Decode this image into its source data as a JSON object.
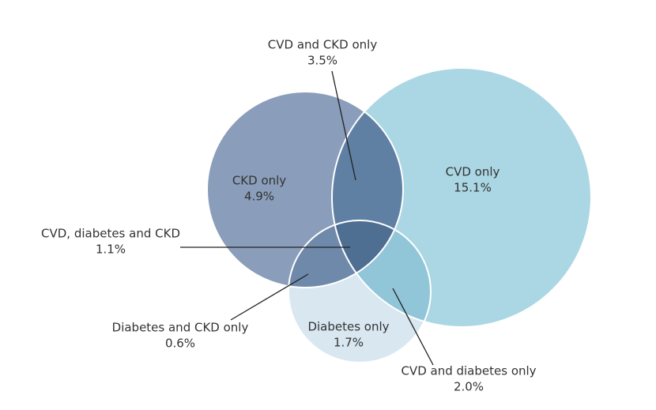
{
  "chart_data": {
    "type": "venn",
    "categories": [
      "CVD and CKD only",
      "CKD only",
      "CVD only",
      "CVD, diabetes and CKD",
      "Diabetes and CKD only",
      "Diabetes only",
      "CVD and diabetes only"
    ],
    "values": [
      3.5,
      4.9,
      15.1,
      1.1,
      0.6,
      1.7,
      2.0
    ],
    "value_labels": [
      "3.5%",
      "4.9%",
      "15.1%",
      "1.1%",
      "0.6%",
      "1.7%",
      "2.0%"
    ],
    "colors": [
      "#5f80a3",
      "#8a9dba",
      "#abd7e4",
      "#4e6e92",
      "#6f89ab",
      "#d8e7f0",
      "#91c5d8"
    ]
  }
}
